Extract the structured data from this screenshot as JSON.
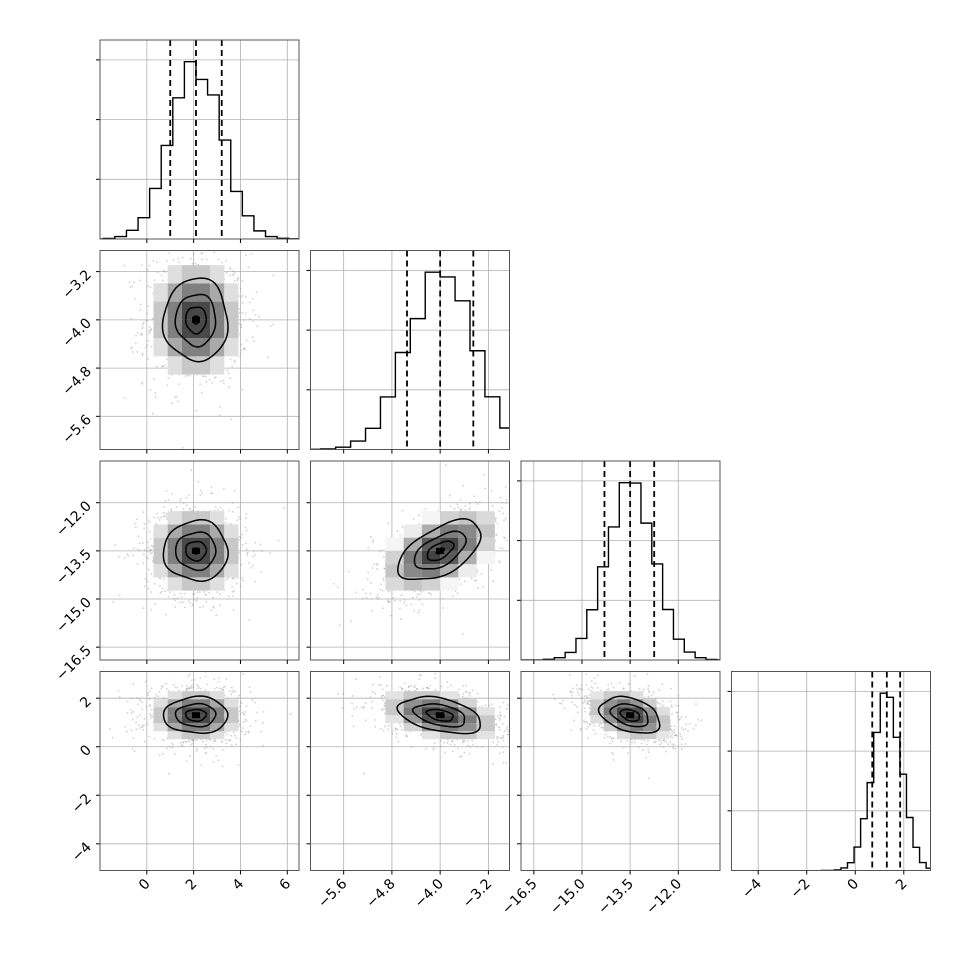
{
  "chart_data": {
    "type": "corner",
    "parameters": [
      {
        "range": [
          -2.0,
          6.5
        ],
        "ticks": [
          0,
          2,
          4,
          6
        ],
        "tick_labels": [
          "0",
          "2",
          "4",
          "6"
        ],
        "quantiles": [
          1.0,
          2.1,
          3.2
        ],
        "mean": 2.1,
        "sd": 1.1,
        "x_axis_labels_visible": true,
        "y_axis_labels_visible": false
      },
      {
        "range": [
          -6.15,
          -2.85
        ],
        "ticks": [
          -5.6,
          -4.8,
          -4.0,
          -3.2
        ],
        "tick_labels": [
          "−5.6",
          "−4.8",
          "−4.0",
          "−3.2"
        ],
        "quantiles": [
          -4.55,
          -4.0,
          -3.45
        ],
        "mean": -4.0,
        "sd": 0.55,
        "x_axis_labels_visible": true,
        "y_axis_labels_visible": true
      },
      {
        "range": [
          -16.9,
          -10.7
        ],
        "ticks": [
          -16.5,
          -15.0,
          -13.5,
          -12.0
        ],
        "tick_labels": [
          "−16.5",
          "−15.0",
          "−13.5",
          "−12.0"
        ],
        "quantiles": [
          -14.3,
          -13.5,
          -12.75
        ],
        "mean": -13.5,
        "sd": 0.75,
        "x_axis_labels_visible": true,
        "y_axis_labels_visible": true
      },
      {
        "range": [
          -5.1,
          3.1
        ],
        "ticks": [
          -4,
          -2,
          0,
          2
        ],
        "tick_labels": [
          "−4",
          "−2",
          "0",
          "2"
        ],
        "quantiles": [
          0.7,
          1.3,
          1.85
        ],
        "mean": 1.3,
        "sd": 0.6,
        "x_axis_labels_visible": true,
        "y_axis_labels_visible": true
      }
    ],
    "correlations": [
      [
        1,
        0,
        0,
        0
      ],
      [
        0,
        1,
        0.55,
        -0.4
      ],
      [
        0,
        0.55,
        1,
        -0.35
      ],
      [
        0,
        -0.4,
        -0.35,
        1
      ]
    ],
    "diagonal_histogram": {
      "bins": 20,
      "style": "step",
      "quantile_lines": "dashed"
    },
    "off_diagonal": {
      "style": "2d-histogram with contours and scatter points",
      "contour_levels": 4
    },
    "grid": true,
    "colors": {
      "line": "#000000",
      "scatter": "#9a9a9a",
      "grid": "#b0b0b0",
      "density_dark": "#3a3a3a"
    }
  }
}
